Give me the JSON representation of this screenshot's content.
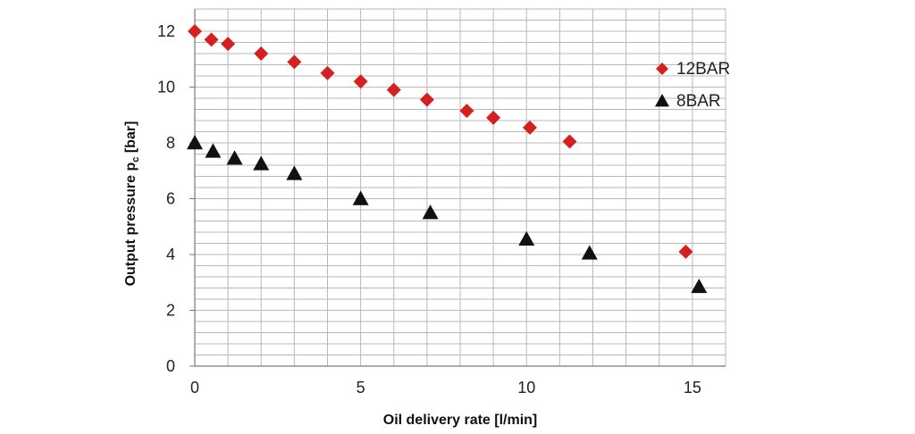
{
  "chart_data": {
    "type": "scatter",
    "xlabel": "Oil delivery rate [l/min]",
    "ylabel": "Output pressure p",
    "ylabel_subscript": "c",
    "ylabel_unit": " [bar]",
    "xlim": [
      0,
      16
    ],
    "ylim": [
      0,
      12.8
    ],
    "x_ticks": [
      0,
      5,
      10,
      15
    ],
    "y_ticks": [
      0,
      2,
      4,
      6,
      8,
      10,
      12
    ],
    "x_tick_labels": [
      "0",
      "5",
      "10",
      "15"
    ],
    "y_tick_labels": [
      "0",
      "2",
      "4",
      "6",
      "8",
      "10",
      "12"
    ],
    "grid": true,
    "legend_position": "top-right",
    "series": [
      {
        "name": "12BAR",
        "marker": "diamond",
        "color": "#d42020",
        "points": [
          [
            0,
            12.0
          ],
          [
            0.5,
            11.7
          ],
          [
            1.0,
            11.55
          ],
          [
            2.0,
            11.2
          ],
          [
            3.0,
            10.9
          ],
          [
            4.0,
            10.5
          ],
          [
            5.0,
            10.2
          ],
          [
            6.0,
            9.9
          ],
          [
            7.0,
            9.55
          ],
          [
            8.2,
            9.15
          ],
          [
            9.0,
            8.9
          ],
          [
            10.1,
            8.55
          ],
          [
            11.3,
            8.05
          ],
          [
            14.8,
            4.1
          ]
        ]
      },
      {
        "name": "8BAR",
        "marker": "triangle",
        "color": "#111111",
        "points": [
          [
            0,
            8.0
          ],
          [
            0.55,
            7.7
          ],
          [
            1.2,
            7.45
          ],
          [
            2.0,
            7.25
          ],
          [
            3.0,
            6.9
          ],
          [
            5.0,
            6.0
          ],
          [
            7.1,
            5.5
          ],
          [
            10.0,
            4.55
          ],
          [
            11.9,
            4.05
          ],
          [
            15.2,
            2.85
          ]
        ]
      }
    ]
  }
}
